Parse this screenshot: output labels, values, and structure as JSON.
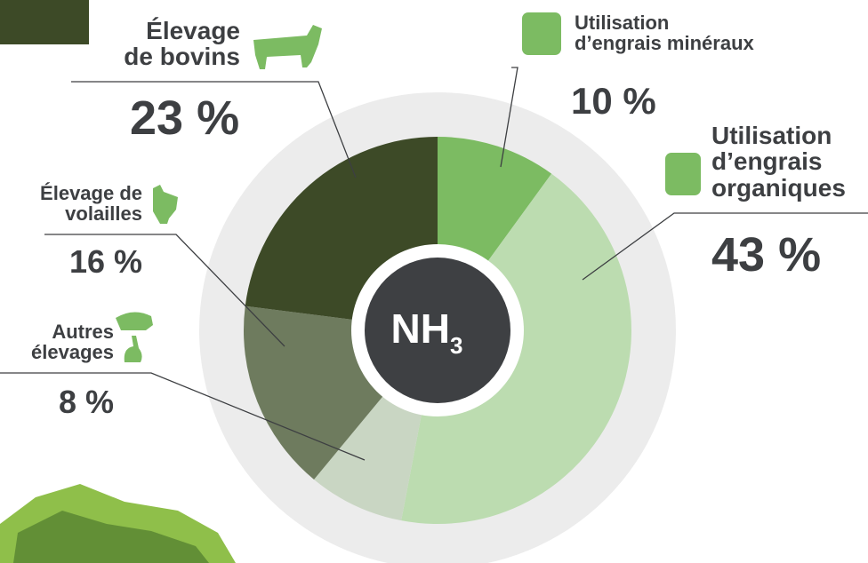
{
  "chart_data": {
    "type": "donut",
    "categories": [
      "Utilisation\nd’engrais minéraux",
      "Utilisation\nd’engrais\norganiques",
      "Autres\nélevages",
      "Élevage de\nvolailles",
      "Élevage\nde bovins"
    ],
    "values": [
      10,
      43,
      8,
      16,
      23
    ],
    "value_labels": [
      "10 %",
      "43 %",
      "8 %",
      "16 %",
      "23 %"
    ],
    "colors": [
      "#7cbb62",
      "#bcdcb0",
      "#c9d6c3",
      "#6e7b5e",
      "#3d4a27"
    ],
    "center_label": {
      "main": "NH",
      "sub": "3"
    }
  }
}
